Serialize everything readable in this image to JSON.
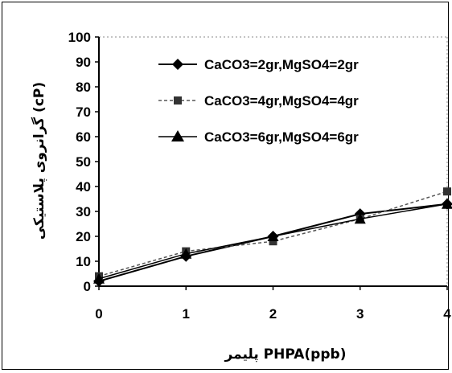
{
  "chart_data": {
    "type": "line",
    "title": "",
    "xlabel": "پلیمر PHPA(ppb)",
    "ylabel": "گرانروی پلاستیکی (cP)",
    "x": [
      0,
      1,
      2,
      3,
      4
    ],
    "xlim": [
      0,
      4
    ],
    "ylim": [
      0,
      100
    ],
    "yticks": [
      0,
      10,
      20,
      30,
      40,
      50,
      60,
      70,
      80,
      90,
      100
    ],
    "xticks": [
      0,
      1,
      2,
      3,
      4
    ],
    "grid": false,
    "legend_position": "top-right",
    "series": [
      {
        "name": "CaCO3=2gr,MgSO4=2gr",
        "values": [
          2,
          12,
          20,
          29,
          33
        ],
        "marker": "diamond",
        "color": "#000000"
      },
      {
        "name": "CaCO3=4gr,MgSO4=4gr",
        "values": [
          4,
          14,
          18,
          27,
          38
        ],
        "marker": "square",
        "color": "#555555"
      },
      {
        "name": "CaCO3=6gr,MgSO4=6gr",
        "values": [
          3,
          13,
          20,
          27,
          33
        ],
        "marker": "triangle",
        "color": "#000000"
      }
    ]
  }
}
